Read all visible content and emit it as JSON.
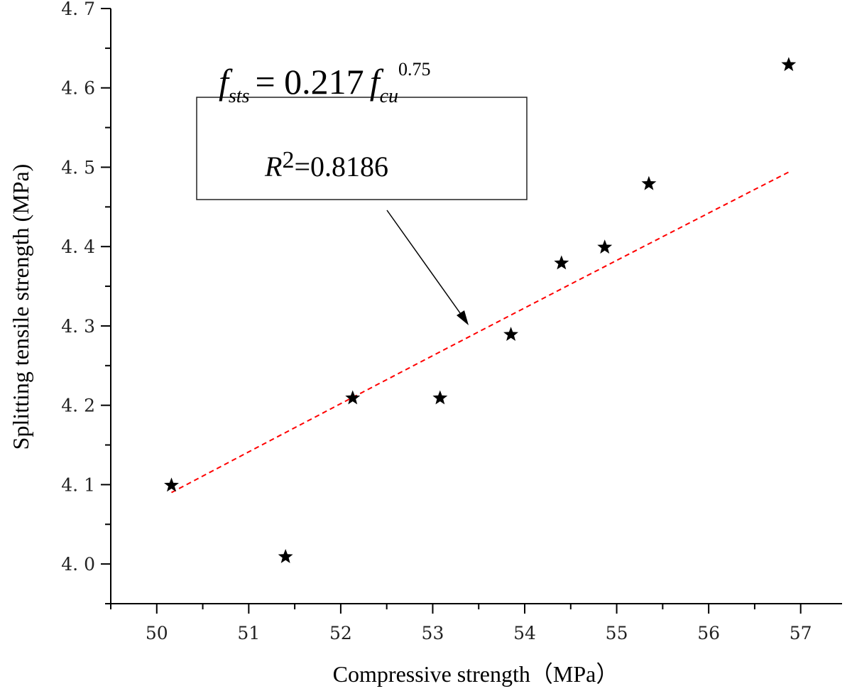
{
  "chart_data": {
    "type": "scatter",
    "xlabel": "Compressive strength（MPa）",
    "ylabel": "Splitting tensile strength (MPa)",
    "xlim": [
      49.5,
      57.45
    ],
    "ylim": [
      3.95,
      4.7
    ],
    "x_ticks": [
      "50",
      "51",
      "52",
      "53",
      "54",
      "55",
      "56",
      "57"
    ],
    "y_ticks": [
      "4. 0",
      "4. 1",
      "4. 2",
      "4. 3",
      "4. 4",
      "4. 5",
      "4. 6",
      "4. 7"
    ],
    "grid": false,
    "marker": "star",
    "marker_color": "#000000",
    "points": [
      {
        "x": 50.16,
        "y": 4.1
      },
      {
        "x": 51.4,
        "y": 4.01
      },
      {
        "x": 52.13,
        "y": 4.21
      },
      {
        "x": 53.08,
        "y": 4.21
      },
      {
        "x": 53.85,
        "y": 4.29
      },
      {
        "x": 54.4,
        "y": 4.38
      },
      {
        "x": 54.87,
        "y": 4.4
      },
      {
        "x": 55.35,
        "y": 4.48
      },
      {
        "x": 56.87,
        "y": 4.63
      }
    ],
    "fit": {
      "type": "power",
      "coefficient": 0.217,
      "exponent": 0.75,
      "x_range": [
        50.16,
        56.87
      ],
      "color": "#ff0000",
      "style": "dashed"
    },
    "annotation": {
      "eq_lhs": "f",
      "eq_lhs_sub": "sts",
      "eq_mid": "= 0.217",
      "eq_rhs": "f",
      "eq_rhs_sub": "cu",
      "eq_rhs_sup": "0.75",
      "r2_label": "R",
      "r2_sup": "2",
      "r2_value": "=0.8186"
    }
  }
}
